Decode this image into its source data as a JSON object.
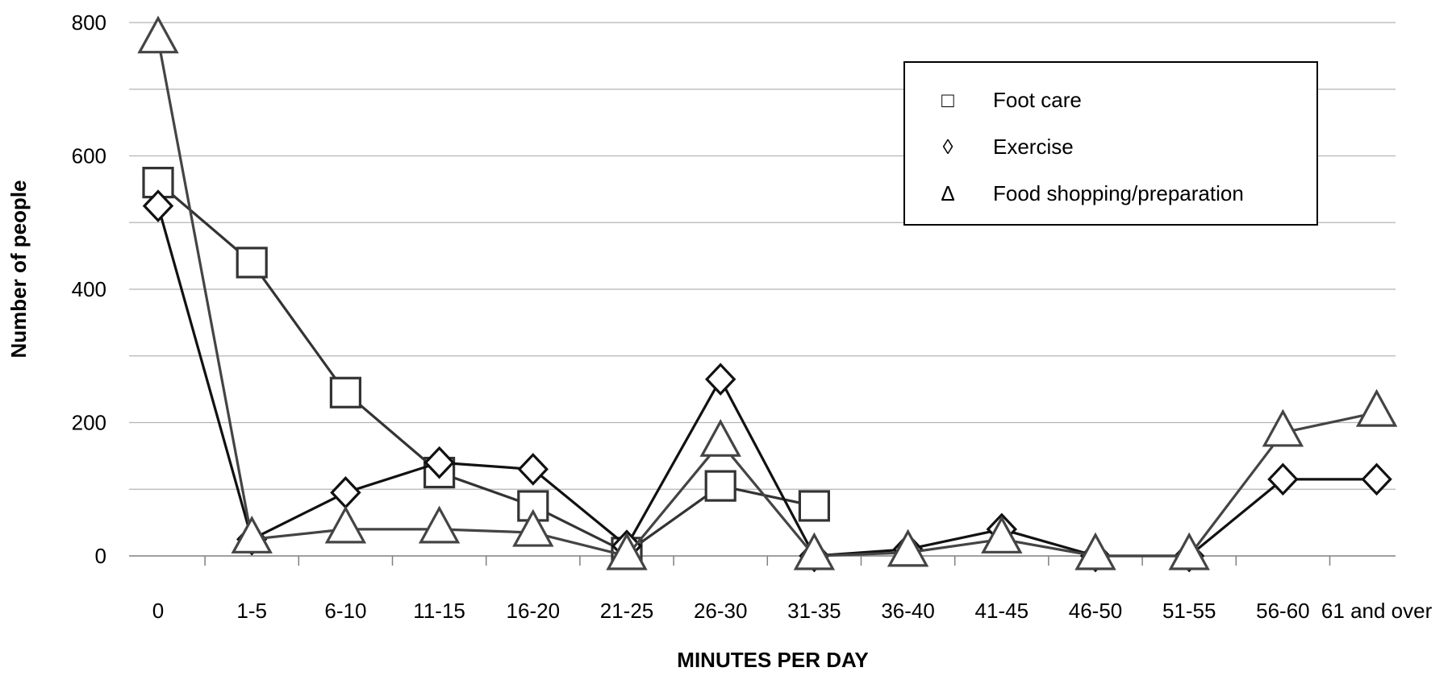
{
  "chart_data": {
    "type": "line",
    "title": "",
    "xlabel": "MINUTES PER DAY",
    "ylabel": "Number  of  people",
    "ylim": [
      0,
      800
    ],
    "y_ticks": [
      0,
      200,
      400,
      600,
      800
    ],
    "y_tick_labels": [
      "0",
      "200",
      "400",
      "600",
      "800"
    ],
    "grid": true,
    "legend_position": "top-right",
    "categories": [
      "0",
      "1-5",
      "6-10",
      "11-15",
      "16-20",
      "21-25",
      "26-30",
      "31-35",
      "36-40",
      "41-45",
      "46-50",
      "51-55",
      "56-60",
      "61 and over"
    ],
    "series": [
      {
        "name": "Foot care",
        "marker": "square",
        "marker_glyph": "□",
        "color": "#333333",
        "values": [
          560,
          440,
          245,
          125,
          75,
          5,
          105,
          75,
          null,
          null,
          null,
          null,
          null,
          null
        ]
      },
      {
        "name": "Exercise",
        "marker": "diamond",
        "marker_glyph": "◊",
        "color": "#111111",
        "values": [
          525,
          25,
          95,
          140,
          130,
          15,
          265,
          0,
          10,
          40,
          0,
          0,
          115,
          115
        ]
      },
      {
        "name": "Food shopping/preparation",
        "marker": "triangle",
        "marker_glyph": "Δ",
        "color": "#444444",
        "values": [
          775,
          25,
          40,
          40,
          35,
          0,
          170,
          0,
          5,
          25,
          0,
          0,
          185,
          215
        ]
      }
    ]
  }
}
